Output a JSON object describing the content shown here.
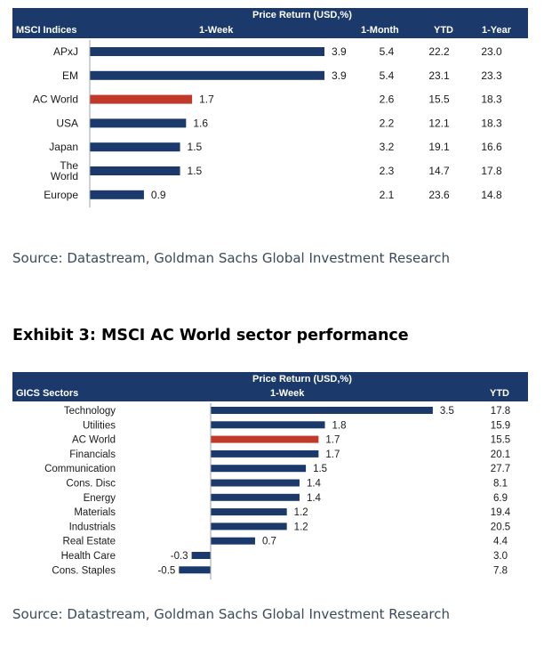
{
  "chart_data": [
    {
      "type": "table",
      "header_group": "Price Return (USD,%)",
      "row_header": "MSCI Indices",
      "columns": [
        "1-Week",
        "1-Month",
        "YTD",
        "1-Year"
      ],
      "categories": [
        "APxJ",
        "EM",
        "AC World",
        "USA",
        "Japan",
        "The World",
        "Europe"
      ],
      "series": [
        {
          "name": "1-Week",
          "values": [
            3.9,
            3.9,
            1.7,
            1.6,
            1.5,
            1.5,
            0.9
          ],
          "value_labels": [
            "3.9",
            "3.9",
            "1.7",
            "1.6",
            "1.5",
            "1.5",
            "0.9"
          ]
        },
        {
          "name": "1-Month",
          "values": [
            5.4,
            5.4,
            2.6,
            2.2,
            3.2,
            2.3,
            2.1
          ],
          "value_labels": [
            "5.4",
            "5.4",
            "2.6",
            "2.2",
            "3.2",
            "2.3",
            "2.1"
          ]
        },
        {
          "name": "YTD",
          "values": [
            22.2,
            23.1,
            15.5,
            12.1,
            19.1,
            14.7,
            23.6
          ],
          "value_labels": [
            "22.2",
            "23.1",
            "15.5",
            "12.1",
            "19.1",
            "14.7",
            "23.6"
          ]
        },
        {
          "name": "1-Year",
          "values": [
            23.0,
            23.3,
            18.3,
            18.3,
            16.6,
            17.8,
            14.8
          ],
          "value_labels": [
            "23.0",
            "23.3",
            "18.3",
            "18.3",
            "16.6",
            "17.8",
            "14.8"
          ]
        }
      ],
      "highlight_category": "AC World",
      "colors": {
        "bar": "#1b3a6b",
        "highlight": "#c0392b",
        "header": "#1b3a6b"
      },
      "bar_range": [
        0,
        4.5
      ],
      "source": "Source: Datastream, Goldman Sachs Global Investment Research"
    },
    {
      "type": "table",
      "title": "Exhibit 3: MSCI AC World sector performance",
      "header_group": "Price Return (USD,%)",
      "row_header": "GICS Sectors",
      "columns": [
        "1-Week",
        "YTD"
      ],
      "categories": [
        "Technology",
        "Utilities",
        "AC World",
        "Financials",
        "Communication",
        "Cons. Disc",
        "Energy",
        "Materials",
        "Industrials",
        "Real Estate",
        "Health Care",
        "Cons. Staples"
      ],
      "series": [
        {
          "name": "1-Week",
          "values": [
            3.5,
            1.8,
            1.7,
            1.7,
            1.5,
            1.4,
            1.4,
            1.2,
            1.2,
            0.7,
            -0.3,
            -0.5
          ],
          "value_labels": [
            "3.5",
            "1.8",
            "1.7",
            "1.7",
            "1.5",
            "1.4",
            "1.4",
            "1.2",
            "1.2",
            "0.7",
            "-0.3",
            "-0.5"
          ]
        },
        {
          "name": "YTD",
          "values": [
            17.8,
            15.9,
            15.5,
            20.1,
            27.7,
            8.1,
            6.9,
            19.4,
            20.5,
            4.4,
            3.0,
            7.8
          ],
          "value_labels": [
            "17.8",
            "15.9",
            "15.5",
            "20.1",
            "27.7",
            "8.1",
            "6.9",
            "19.4",
            "20.5",
            "4.4",
            "3.0",
            "7.8"
          ]
        }
      ],
      "highlight_category": "AC World",
      "colors": {
        "bar": "#1b3a6b",
        "highlight": "#c0392b",
        "header": "#1b3a6b"
      },
      "bar_range": [
        -1.1,
        4.2
      ],
      "source": "Source: Datastream, Goldman Sachs Global Investment Research"
    }
  ]
}
